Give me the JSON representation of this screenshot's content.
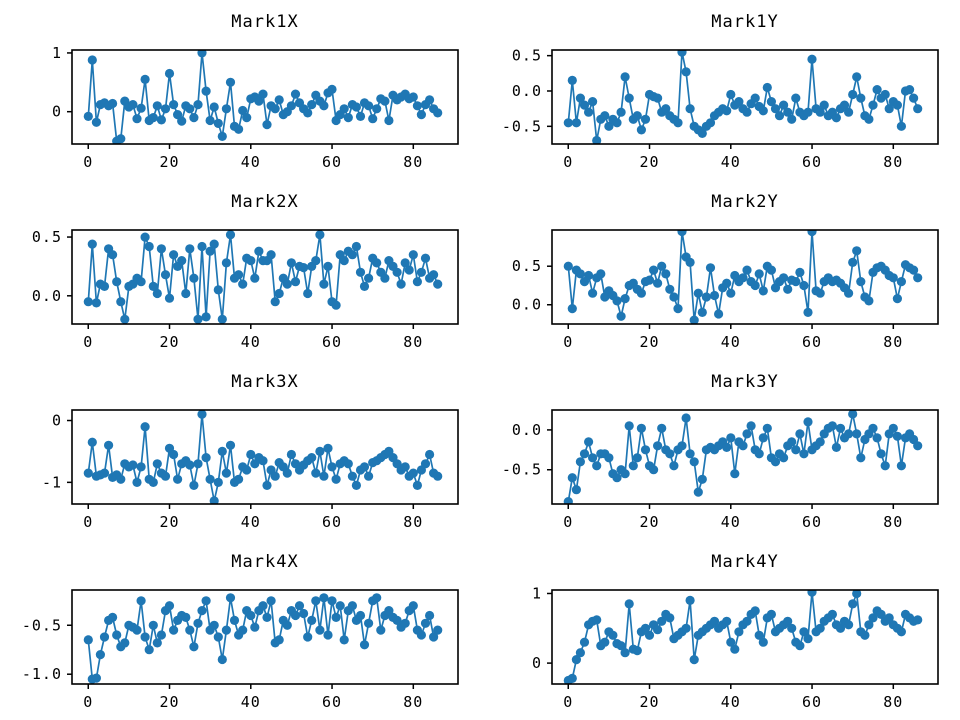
{
  "figure": {
    "background": "#ffffff",
    "series_color": "#1f77b4",
    "axis_color": "#000000",
    "grid": "off",
    "legend": "none",
    "layout": "4 rows x 2 columns of subplots"
  },
  "chart_data": [
    {
      "type": "line",
      "title": "Mark1X",
      "marker": "circle",
      "color": "#1f77b4",
      "x_start": 0,
      "x_step": 1,
      "n_points": 87,
      "xlim": [
        -4,
        91
      ],
      "ylim": [
        -0.55,
        1.05
      ],
      "xticks": [
        {
          "v": 0,
          "label": "0"
        },
        {
          "v": 20,
          "label": "20"
        },
        {
          "v": 40,
          "label": "40"
        },
        {
          "v": 60,
          "label": "60"
        },
        {
          "v": 80,
          "label": "80"
        }
      ],
      "yticks": [
        {
          "v": 0,
          "label": "0"
        },
        {
          "v": 1,
          "label": "1"
        }
      ],
      "values": [
        -0.08,
        0.88,
        -0.18,
        0.12,
        0.15,
        0.1,
        0.14,
        -0.5,
        -0.46,
        0.18,
        0.08,
        0.12,
        -0.12,
        0.06,
        0.55,
        -0.15,
        -0.1,
        0.1,
        -0.14,
        0.05,
        0.65,
        0.12,
        -0.05,
        -0.16,
        0.1,
        0.05,
        -0.1,
        0.12,
        1.0,
        0.35,
        -0.15,
        0.08,
        -0.2,
        -0.42,
        0.05,
        0.5,
        -0.25,
        -0.3,
        0.02,
        -0.1,
        0.22,
        0.25,
        0.18,
        0.3,
        -0.22,
        0.1,
        0.05,
        0.2,
        -0.05,
        0.0,
        0.1,
        0.3,
        0.15,
        0.05,
        -0.02,
        0.12,
        0.28,
        0.18,
        0.1,
        0.32,
        0.38,
        -0.15,
        -0.05,
        0.05,
        -0.1,
        0.12,
        0.08,
        -0.08,
        0.15,
        0.1,
        -0.12,
        0.05,
        0.22,
        0.18,
        -0.15,
        0.28,
        0.2,
        0.25,
        0.3,
        0.22,
        0.25,
        0.1,
        -0.05,
        0.12,
        0.2,
        0.05,
        -0.02
      ]
    },
    {
      "type": "line",
      "title": "Mark1Y",
      "marker": "circle",
      "color": "#1f77b4",
      "x_start": 0,
      "x_step": 1,
      "n_points": 87,
      "xlim": [
        -4,
        91
      ],
      "ylim": [
        -0.75,
        0.58
      ],
      "xticks": [
        {
          "v": 0,
          "label": "0"
        },
        {
          "v": 20,
          "label": "20"
        },
        {
          "v": 40,
          "label": "40"
        },
        {
          "v": 60,
          "label": "60"
        },
        {
          "v": 80,
          "label": "80"
        }
      ],
      "yticks": [
        {
          "v": -0.5,
          "label": "-0.5"
        },
        {
          "v": 0,
          "label": "0.0"
        },
        {
          "v": 0.5,
          "label": "0.5"
        }
      ],
      "values": [
        -0.45,
        0.15,
        -0.45,
        -0.1,
        -0.2,
        -0.3,
        -0.15,
        -0.7,
        -0.4,
        -0.35,
        -0.5,
        -0.4,
        -0.45,
        -0.3,
        0.2,
        -0.1,
        -0.4,
        -0.35,
        -0.55,
        -0.4,
        -0.05,
        -0.08,
        -0.1,
        -0.3,
        -0.25,
        -0.35,
        -0.4,
        -0.45,
        0.55,
        0.27,
        -0.25,
        -0.5,
        -0.55,
        -0.6,
        -0.5,
        -0.45,
        -0.35,
        -0.3,
        -0.25,
        -0.28,
        -0.05,
        -0.2,
        -0.15,
        -0.25,
        -0.3,
        -0.18,
        -0.1,
        -0.22,
        -0.28,
        0.05,
        -0.15,
        -0.25,
        -0.35,
        -0.2,
        -0.3,
        -0.4,
        -0.1,
        -0.3,
        -0.35,
        -0.3,
        0.45,
        -0.25,
        -0.3,
        -0.2,
        -0.35,
        -0.3,
        -0.38,
        -0.25,
        -0.2,
        -0.3,
        -0.05,
        0.2,
        -0.1,
        -0.35,
        -0.4,
        -0.2,
        0.02,
        -0.1,
        -0.05,
        -0.25,
        -0.15,
        -0.2,
        -0.5,
        0.0,
        0.02,
        -0.1,
        -0.25
      ]
    },
    {
      "type": "line",
      "title": "Mark2X",
      "marker": "circle",
      "color": "#1f77b4",
      "x_start": 0,
      "x_step": 1,
      "n_points": 87,
      "xlim": [
        -4,
        91
      ],
      "ylim": [
        -0.24,
        0.56
      ],
      "xticks": [
        {
          "v": 0,
          "label": "0"
        },
        {
          "v": 20,
          "label": "20"
        },
        {
          "v": 40,
          "label": "40"
        },
        {
          "v": 60,
          "label": "60"
        },
        {
          "v": 80,
          "label": "80"
        }
      ],
      "yticks": [
        {
          "v": 0,
          "label": "0.0"
        },
        {
          "v": 0.5,
          "label": "0.5"
        }
      ],
      "values": [
        -0.05,
        0.44,
        -0.06,
        0.1,
        0.08,
        0.4,
        0.35,
        0.12,
        -0.05,
        -0.2,
        0.08,
        0.1,
        0.15,
        0.12,
        0.5,
        0.42,
        0.08,
        0.02,
        0.4,
        0.18,
        -0.02,
        0.35,
        0.25,
        0.3,
        0.02,
        0.4,
        0.15,
        -0.2,
        0.42,
        -0.18,
        0.38,
        0.44,
        0.05,
        -0.2,
        0.28,
        0.52,
        0.15,
        0.18,
        0.1,
        0.32,
        0.3,
        0.15,
        0.38,
        0.3,
        0.3,
        0.35,
        -0.05,
        0.02,
        0.15,
        0.1,
        0.28,
        0.12,
        0.25,
        0.24,
        0.02,
        0.25,
        0.3,
        0.52,
        0.1,
        0.25,
        -0.05,
        -0.08,
        0.35,
        0.3,
        0.38,
        0.35,
        0.42,
        0.2,
        0.08,
        0.15,
        0.32,
        0.28,
        0.2,
        0.15,
        0.3,
        0.25,
        0.2,
        0.1,
        0.28,
        0.22,
        0.35,
        0.12,
        0.2,
        0.32,
        0.15,
        0.18,
        0.1
      ]
    },
    {
      "type": "line",
      "title": "Mark2Y",
      "marker": "circle",
      "color": "#1f77b4",
      "x_start": 0,
      "x_step": 1,
      "n_points": 87,
      "xlim": [
        -4,
        91
      ],
      "ylim": [
        -0.25,
        0.97
      ],
      "xticks": [
        {
          "v": 0,
          "label": "0"
        },
        {
          "v": 20,
          "label": "20"
        },
        {
          "v": 40,
          "label": "40"
        },
        {
          "v": 60,
          "label": "60"
        },
        {
          "v": 80,
          "label": "80"
        }
      ],
      "yticks": [
        {
          "v": 0,
          "label": "0.0"
        },
        {
          "v": 0.5,
          "label": "0.5"
        }
      ],
      "values": [
        0.5,
        -0.05,
        0.45,
        0.4,
        0.3,
        0.38,
        0.15,
        0.35,
        0.4,
        0.1,
        0.18,
        0.12,
        0.05,
        -0.15,
        0.08,
        0.25,
        0.28,
        0.2,
        0.15,
        0.3,
        0.32,
        0.45,
        0.28,
        0.5,
        0.4,
        0.2,
        0.1,
        -0.05,
        0.95,
        0.62,
        0.55,
        -0.2,
        0.15,
        -0.1,
        0.1,
        0.48,
        0.12,
        -0.12,
        0.22,
        0.28,
        0.15,
        0.38,
        0.3,
        0.35,
        0.45,
        0.3,
        0.25,
        0.4,
        0.18,
        0.5,
        0.45,
        0.22,
        0.3,
        0.35,
        0.2,
        0.32,
        0.3,
        0.42,
        0.25,
        -0.1,
        0.95,
        0.18,
        0.15,
        0.3,
        0.35,
        0.3,
        0.32,
        0.28,
        0.22,
        0.15,
        0.55,
        0.7,
        0.3,
        0.1,
        0.05,
        0.42,
        0.48,
        0.5,
        0.45,
        0.38,
        0.35,
        0.08,
        0.3,
        0.52,
        0.48,
        0.45,
        0.35
      ]
    },
    {
      "type": "line",
      "title": "Mark3X",
      "marker": "circle",
      "color": "#1f77b4",
      "x_start": 0,
      "x_step": 1,
      "n_points": 87,
      "xlim": [
        -4,
        91
      ],
      "ylim": [
        -1.35,
        0.17
      ],
      "xticks": [
        {
          "v": 0,
          "label": "0"
        },
        {
          "v": 20,
          "label": "20"
        },
        {
          "v": 40,
          "label": "40"
        },
        {
          "v": 60,
          "label": "60"
        },
        {
          "v": 80,
          "label": "80"
        }
      ],
      "yticks": [
        {
          "v": -1,
          "label": "-1"
        },
        {
          "v": 0,
          "label": "0"
        }
      ],
      "values": [
        -0.85,
        -0.35,
        -0.9,
        -0.88,
        -0.85,
        -0.4,
        -0.92,
        -0.88,
        -0.95,
        -0.7,
        -0.75,
        -0.72,
        -1.0,
        -0.75,
        -0.1,
        -0.95,
        -1.0,
        -0.7,
        -0.85,
        -0.9,
        -0.45,
        -0.55,
        -0.95,
        -0.7,
        -0.65,
        -0.72,
        -1.05,
        -0.7,
        0.1,
        -0.6,
        -0.95,
        -1.3,
        -1.0,
        -0.5,
        -0.85,
        -0.4,
        -1.0,
        -0.95,
        -0.75,
        -0.8,
        -0.55,
        -0.7,
        -0.6,
        -0.65,
        -1.05,
        -0.8,
        -0.9,
        -0.68,
        -0.75,
        -0.85,
        -0.55,
        -0.7,
        -0.8,
        -0.72,
        -0.65,
        -0.6,
        -0.85,
        -0.5,
        -0.9,
        -0.45,
        -0.75,
        -0.95,
        -0.7,
        -0.65,
        -0.7,
        -0.9,
        -1.05,
        -0.8,
        -0.75,
        -0.9,
        -0.68,
        -0.65,
        -0.6,
        -0.55,
        -0.5,
        -0.6,
        -0.7,
        -0.8,
        -0.75,
        -0.9,
        -0.85,
        -1.05,
        -0.8,
        -0.7,
        -0.55,
        -0.85,
        -0.9
      ]
    },
    {
      "type": "line",
      "title": "Mark3Y",
      "marker": "circle",
      "color": "#1f77b4",
      "x_start": 0,
      "x_step": 1,
      "n_points": 87,
      "xlim": [
        -4,
        91
      ],
      "ylim": [
        -0.93,
        0.25
      ],
      "xticks": [
        {
          "v": 0,
          "label": "0"
        },
        {
          "v": 20,
          "label": "20"
        },
        {
          "v": 40,
          "label": "40"
        },
        {
          "v": 60,
          "label": "60"
        },
        {
          "v": 80,
          "label": "80"
        }
      ],
      "yticks": [
        {
          "v": -0.5,
          "label": "-0.5"
        },
        {
          "v": 0,
          "label": "0.0"
        }
      ],
      "values": [
        -0.9,
        -0.6,
        -0.75,
        -0.4,
        -0.3,
        -0.15,
        -0.35,
        -0.45,
        -0.3,
        -0.3,
        -0.35,
        -0.55,
        -0.6,
        -0.5,
        -0.55,
        0.05,
        -0.45,
        -0.35,
        0.02,
        -0.25,
        -0.45,
        -0.5,
        -0.2,
        0.02,
        -0.25,
        -0.3,
        -0.45,
        -0.25,
        -0.2,
        0.15,
        -0.3,
        -0.4,
        -0.78,
        -0.62,
        -0.25,
        -0.22,
        -0.25,
        -0.2,
        -0.15,
        -0.22,
        -0.1,
        -0.55,
        -0.15,
        -0.2,
        -0.05,
        0.05,
        -0.25,
        -0.3,
        -0.1,
        0.02,
        -0.35,
        -0.4,
        -0.3,
        -0.35,
        -0.2,
        -0.15,
        -0.25,
        -0.05,
        -0.3,
        0.1,
        -0.25,
        -0.2,
        -0.15,
        -0.05,
        0.02,
        0.05,
        -0.22,
        0.02,
        -0.1,
        -0.05,
        0.2,
        -0.05,
        -0.35,
        -0.12,
        -0.05,
        0.02,
        -0.1,
        -0.3,
        -0.45,
        -0.05,
        0.02,
        -0.08,
        -0.45,
        -0.1,
        -0.05,
        -0.12,
        -0.2
      ]
    },
    {
      "type": "line",
      "title": "Mark4X",
      "marker": "circle",
      "color": "#1f77b4",
      "x_start": 0,
      "x_step": 1,
      "n_points": 87,
      "xlim": [
        -4,
        91
      ],
      "ylim": [
        -1.1,
        -0.14
      ],
      "xticks": [
        {
          "v": 0,
          "label": "0"
        },
        {
          "v": 20,
          "label": "20"
        },
        {
          "v": 40,
          "label": "40"
        },
        {
          "v": 60,
          "label": "60"
        },
        {
          "v": 80,
          "label": "80"
        }
      ],
      "yticks": [
        {
          "v": -1.0,
          "label": "-1.0"
        },
        {
          "v": -0.5,
          "label": "-0.5"
        }
      ],
      "values": [
        -0.65,
        -1.05,
        -1.04,
        -0.8,
        -0.62,
        -0.45,
        -0.42,
        -0.6,
        -0.72,
        -0.68,
        -0.5,
        -0.52,
        -0.55,
        -0.25,
        -0.62,
        -0.75,
        -0.5,
        -0.68,
        -0.6,
        -0.35,
        -0.3,
        -0.55,
        -0.45,
        -0.4,
        -0.42,
        -0.55,
        -0.72,
        -0.48,
        -0.35,
        -0.25,
        -0.55,
        -0.5,
        -0.62,
        -0.85,
        -0.55,
        -0.22,
        -0.45,
        -0.6,
        -0.55,
        -0.35,
        -0.4,
        -0.52,
        -0.35,
        -0.3,
        -0.42,
        -0.25,
        -0.68,
        -0.65,
        -0.45,
        -0.5,
        -0.35,
        -0.4,
        -0.3,
        -0.38,
        -0.62,
        -0.45,
        -0.25,
        -0.55,
        -0.22,
        -0.6,
        -0.25,
        -0.42,
        -0.3,
        -0.65,
        -0.35,
        -0.3,
        -0.45,
        -0.4,
        -0.7,
        -0.48,
        -0.25,
        -0.22,
        -0.55,
        -0.4,
        -0.35,
        -0.42,
        -0.45,
        -0.52,
        -0.48,
        -0.35,
        -0.3,
        -0.55,
        -0.6,
        -0.48,
        -0.4,
        -0.62,
        -0.55
      ]
    },
    {
      "type": "line",
      "title": "Mark4Y",
      "marker": "circle",
      "color": "#1f77b4",
      "x_start": 0,
      "x_step": 1,
      "n_points": 87,
      "xlim": [
        -4,
        91
      ],
      "ylim": [
        -0.3,
        1.05
      ],
      "xticks": [
        {
          "v": 0,
          "label": "0"
        },
        {
          "v": 20,
          "label": "20"
        },
        {
          "v": 40,
          "label": "40"
        },
        {
          "v": 60,
          "label": "60"
        },
        {
          "v": 80,
          "label": "80"
        }
      ],
      "yticks": [
        {
          "v": 0,
          "label": "0"
        },
        {
          "v": 1,
          "label": "1"
        }
      ],
      "values": [
        -0.25,
        -0.22,
        0.05,
        0.15,
        0.3,
        0.55,
        0.6,
        0.62,
        0.25,
        0.3,
        0.45,
        0.4,
        0.28,
        0.25,
        0.15,
        0.85,
        0.2,
        0.18,
        0.45,
        0.5,
        0.4,
        0.55,
        0.48,
        0.6,
        0.7,
        0.65,
        0.35,
        0.4,
        0.45,
        0.5,
        0.9,
        0.05,
        0.4,
        0.45,
        0.5,
        0.55,
        0.6,
        0.5,
        0.55,
        0.6,
        0.3,
        0.2,
        0.45,
        0.55,
        0.6,
        0.7,
        0.75,
        0.4,
        0.3,
        0.65,
        0.7,
        0.45,
        0.5,
        0.55,
        0.6,
        0.5,
        0.3,
        0.25,
        0.45,
        0.35,
        1.02,
        0.45,
        0.5,
        0.6,
        0.65,
        0.7,
        0.55,
        0.5,
        0.6,
        0.55,
        0.85,
        1.0,
        0.45,
        0.4,
        0.55,
        0.65,
        0.75,
        0.7,
        0.6,
        0.65,
        0.55,
        0.5,
        0.45,
        0.7,
        0.65,
        0.6,
        0.62
      ]
    }
  ]
}
